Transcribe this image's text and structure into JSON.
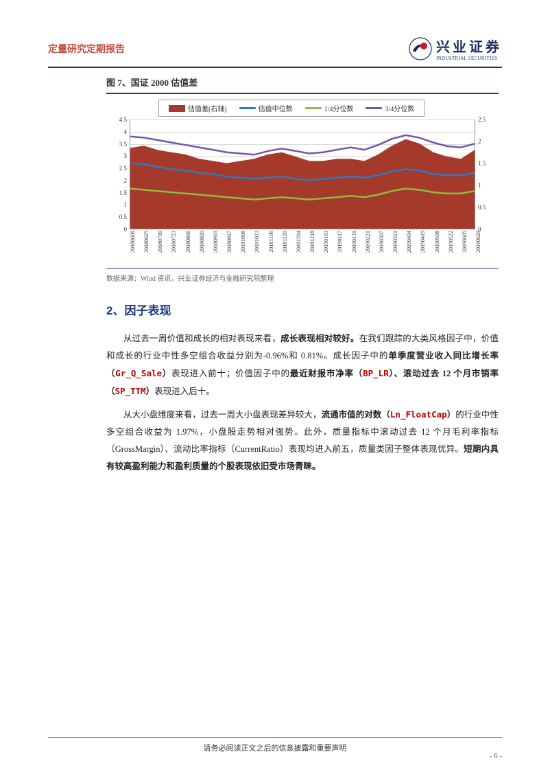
{
  "header": {
    "title": "定量研究定期报告",
    "logo_cn": "兴业证券",
    "logo_en": "INDUSTRIAL SECURITIES"
  },
  "figure": {
    "caption": "图 7、国证 2000 估值差",
    "source": "数据来源：Wind 资讯，兴业证券经济与金融研究院整理",
    "chart": {
      "type": "combo-area-line",
      "legend": [
        {
          "label": "估值差(右轴)",
          "kind": "fill",
          "color": "#a63a2a"
        },
        {
          "label": "估值中位数",
          "kind": "line",
          "color": "#2e78c9"
        },
        {
          "label": "1/4分位数",
          "kind": "line",
          "color": "#8fbc3e"
        },
        {
          "label": "3/4分位数",
          "kind": "line",
          "color": "#7255b3"
        }
      ],
      "y_left": {
        "min": 0,
        "max": 4.5,
        "step": 0.5,
        "ticks": [
          "0",
          "0.5",
          "1",
          "1.5",
          "2",
          "2.5",
          "3",
          "3.5",
          "4",
          "4.5"
        ]
      },
      "y_right": {
        "min": 0,
        "max": 2.5,
        "step": 0.5,
        "ticks": [
          "0",
          "0.5",
          "1",
          "1.5",
          "2",
          "2.5"
        ]
      },
      "x_labels": [
        "20180608",
        "20180625",
        "20180709",
        "20180723",
        "20180806",
        "20180820",
        "20180903",
        "20180917",
        "20181008",
        "20181023",
        "20181106",
        "20181120",
        "20181204",
        "20181218",
        "20190103",
        "20190117",
        "20190131",
        "20190221",
        "20190307",
        "20190321",
        "20190404",
        "20190419",
        "20190508",
        "20190522",
        "20190605",
        "20190620"
      ],
      "series": {
        "spread_right": [
          1.85,
          1.9,
          1.8,
          1.75,
          1.7,
          1.6,
          1.55,
          1.5,
          1.55,
          1.6,
          1.7,
          1.75,
          1.65,
          1.55,
          1.55,
          1.6,
          1.6,
          1.55,
          1.7,
          1.9,
          2.05,
          1.95,
          1.75,
          1.65,
          1.6,
          1.8
        ],
        "median_left": [
          2.7,
          2.65,
          2.55,
          2.45,
          2.4,
          2.3,
          2.25,
          2.15,
          2.1,
          2.05,
          2.1,
          2.15,
          2.05,
          2.0,
          2.05,
          2.1,
          2.15,
          2.1,
          2.2,
          2.35,
          2.45,
          2.4,
          2.25,
          2.2,
          2.2,
          2.3
        ],
        "q1_left": [
          1.65,
          1.6,
          1.55,
          1.5,
          1.45,
          1.4,
          1.35,
          1.3,
          1.25,
          1.2,
          1.25,
          1.3,
          1.25,
          1.2,
          1.25,
          1.3,
          1.35,
          1.3,
          1.4,
          1.55,
          1.65,
          1.6,
          1.5,
          1.45,
          1.45,
          1.55
        ],
        "q3_left": [
          3.8,
          3.75,
          3.65,
          3.55,
          3.45,
          3.35,
          3.25,
          3.15,
          3.1,
          3.05,
          3.2,
          3.3,
          3.2,
          3.1,
          3.15,
          3.25,
          3.35,
          3.25,
          3.45,
          3.7,
          3.85,
          3.75,
          3.55,
          3.4,
          3.35,
          3.5
        ]
      },
      "colors": {
        "area": "#a63a2a",
        "median": "#2e78c9",
        "q1": "#8fbc3e",
        "q3": "#7255b3",
        "grid": "#d9d9d9",
        "axis": "#888888",
        "background": "#ffffff"
      },
      "line_width": 2.5,
      "box_border": "#1a3a7d"
    }
  },
  "section": {
    "heading": "2、因子表现",
    "p1": {
      "lead": "从过去一周价值和成长的相对表现来看，",
      "b1": "成长表现相对较好。",
      "t2": "在我们跟踪的大类风格因子中，价值和成长的行业中性多空组合收益分别为-0.96%和 0.81%。成长因子中的",
      "b2": "单季度营业收入同比增长率（",
      "c1": "Gr_Q_Sale",
      "b3": "）",
      "t3": "表现进入前十；价值因子中的",
      "b4": "最近财报市净率（",
      "c2": "BP_LR",
      "b5": "）、滚动过去 12 个月市销率（",
      "c3": "SP_TTM",
      "b6": "）",
      "t4": "表现进入后十。"
    },
    "p2": {
      "t1": "从大小盘维度来看，过去一周大小盘表现差异较大，",
      "b1": "流通市值的对数（",
      "c1": "Ln_FloatCap",
      "b2": "）",
      "t2": "的行业中性多空组合收益为 1.97%，小盘股走势相对强势。此外，质量指标中滚动过去 12 个月毛利率指标（GrossMargin）、流动比率指标（CurrentRatio）表现均进入前五，质量类因子整体表现优异。",
      "b3": "短期内具有较高盈利能力和盈利质量的个股表现依旧受市场青睐。"
    }
  },
  "footer": {
    "disclaimer": "请务必阅读正文之后的信息披露和重要声明",
    "page": "- 6 -"
  }
}
